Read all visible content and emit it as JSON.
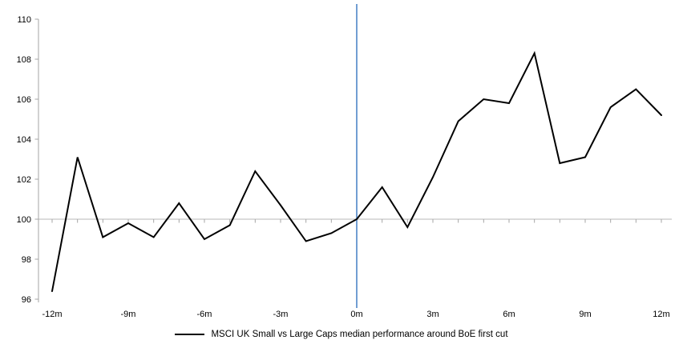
{
  "chart_data": {
    "type": "line",
    "title": "",
    "x": [
      -12,
      -11,
      -10,
      -9,
      -8,
      -7,
      -6,
      -5,
      -4,
      -3,
      -2,
      -1,
      0,
      1,
      2,
      3,
      4,
      5,
      6,
      7,
      8,
      9,
      10,
      11,
      12
    ],
    "series": [
      {
        "name": "MSCI UK Small vs Large Caps median performance around BoE first cut",
        "values": [
          96.4,
          103.1,
          99.1,
          99.8,
          99.1,
          100.8,
          99.0,
          99.7,
          102.4,
          100.7,
          98.9,
          99.3,
          100.0,
          101.6,
          99.6,
          102.1,
          104.9,
          106.0,
          105.8,
          108.3,
          102.8,
          103.1,
          105.6,
          106.5,
          105.2
        ]
      }
    ],
    "x_tick_labels": [
      "-12m",
      "-9m",
      "-6m",
      "-3m",
      "0m",
      "3m",
      "6m",
      "9m",
      "12m"
    ],
    "x_tick_label_step_months": 3,
    "y_tick_labels": [
      "96",
      "98",
      "100",
      "102",
      "104",
      "106",
      "108",
      "110"
    ],
    "ylim": [
      96,
      110
    ],
    "y_step": 2,
    "xlabel": "",
    "ylabel": "",
    "baseline_value": 100,
    "event_line_x": 0,
    "grid": "baseline-only",
    "legend_position": "bottom-center",
    "colors": {
      "series_line": "#000000",
      "event_line": "#4e86c8",
      "baseline": "#c6c6c6",
      "axis": "#a6a6a6",
      "text": "#000000"
    }
  }
}
